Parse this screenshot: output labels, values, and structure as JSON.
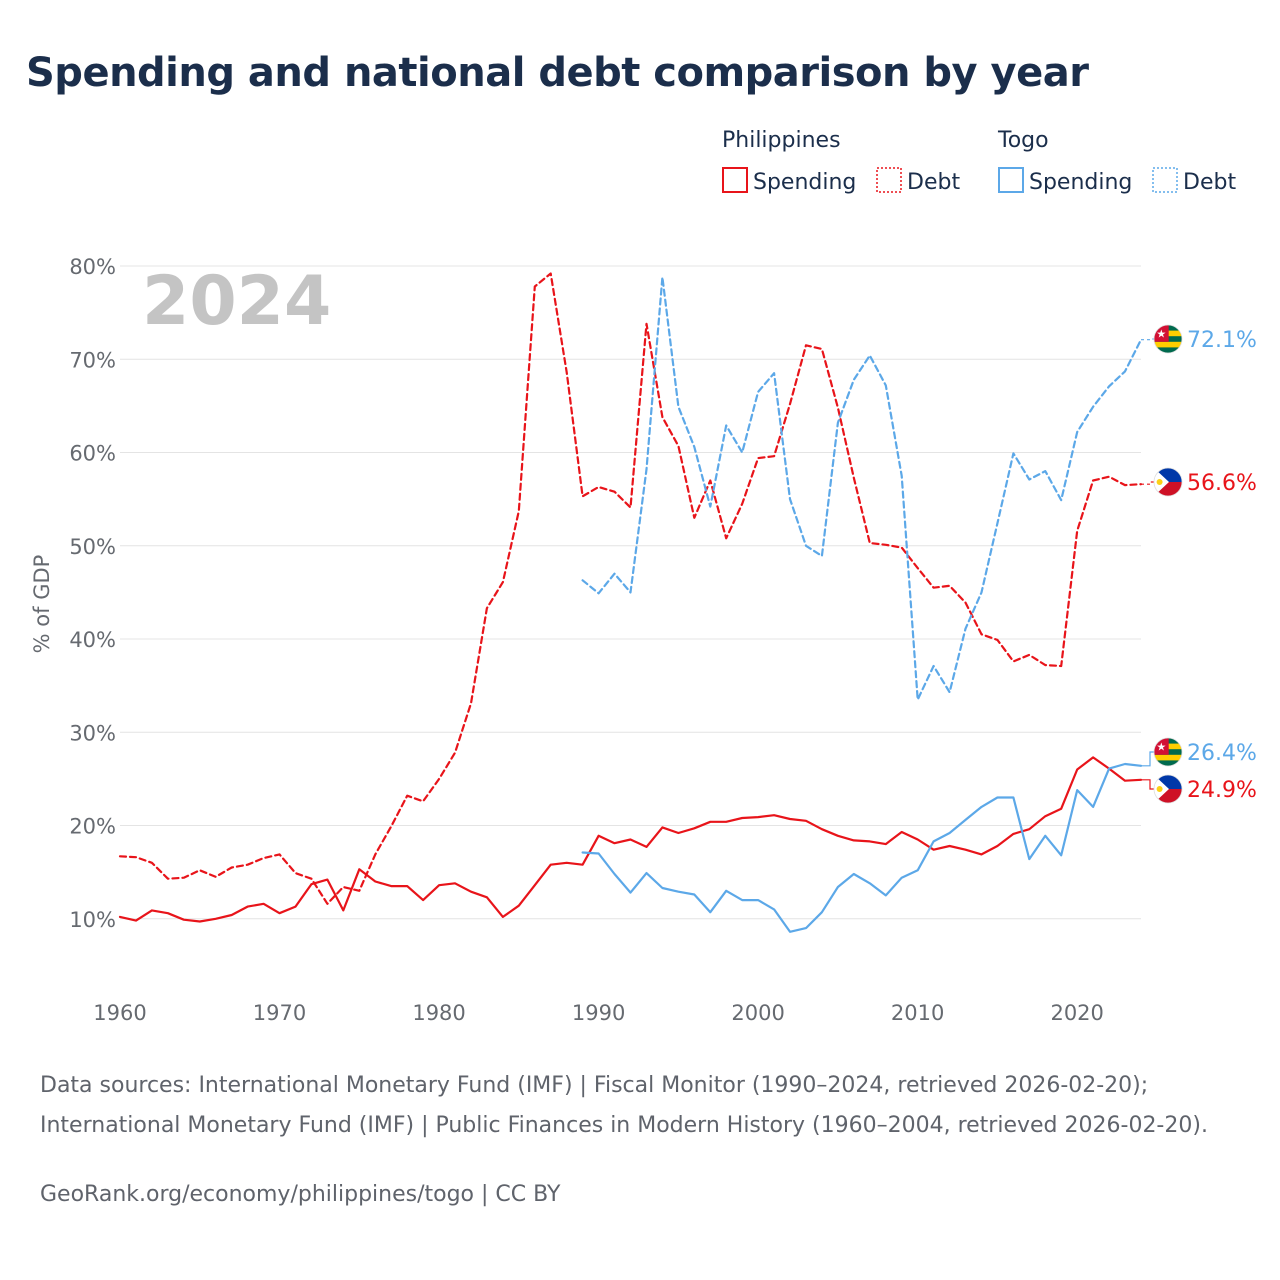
{
  "title": "Spending and national debt comparison by year",
  "year_stamp": "2024",
  "source_note": "Data sources: International Monetary Fund (IMF) | Fiscal Monitor (1990–2024, retrieved 2026-02-20); International Monetary Fund (IMF) | Public Finances in Modern History (1960–2004, retrieved 2026-02-20).",
  "credit": "GeoRank.org/economy/philippines/togo | CC BY",
  "legend": {
    "groups": [
      {
        "country": "Philippines",
        "color": "#e8141a",
        "items": [
          "Spending",
          "Debt"
        ]
      },
      {
        "country": "Togo",
        "color": "#5ca8e8",
        "items": [
          "Spending",
          "Debt"
        ]
      }
    ]
  },
  "chart_data": {
    "type": "line",
    "title": "Spending and national debt comparison by year",
    "ylabel": "% of GDP",
    "xlabel": "",
    "xlim": [
      1960,
      2024
    ],
    "ylim": [
      0,
      80
    ],
    "x_ticks": [
      1960,
      1970,
      1980,
      1990,
      2000,
      2010,
      2020
    ],
    "y_ticks": [
      10,
      20,
      30,
      40,
      50,
      60,
      70,
      80
    ],
    "y_tick_labels": [
      "10%",
      "20%",
      "30%",
      "40%",
      "50%",
      "60%",
      "70%",
      "80%"
    ],
    "series": [
      {
        "name": "Philippines Spending",
        "country": "Philippines",
        "metric": "Spending",
        "color": "#e8141a",
        "dash": "solid",
        "end_label": "24.9%",
        "start_year": 1960,
        "values": [
          10.2,
          9.8,
          10.9,
          10.6,
          9.9,
          9.7,
          10.0,
          10.4,
          11.3,
          11.6,
          10.6,
          11.3,
          13.7,
          14.2,
          10.9,
          15.3,
          14.0,
          13.5,
          13.5,
          12.0,
          13.6,
          13.8,
          12.9,
          12.3,
          10.2,
          11.4,
          13.6,
          15.8,
          16.0,
          15.8,
          18.9,
          18.1,
          18.5,
          17.7,
          19.8,
          19.2,
          19.7,
          20.4,
          20.4,
          20.8,
          20.9,
          21.1,
          20.7,
          20.5,
          19.6,
          18.9,
          18.4,
          18.3,
          18.0,
          19.3,
          18.5,
          17.4,
          17.8,
          17.4,
          16.9,
          17.8,
          19.1,
          19.6,
          21.0,
          21.8,
          26.0,
          27.3,
          26.1,
          24.8,
          24.9
        ]
      },
      {
        "name": "Philippines Debt",
        "country": "Philippines",
        "metric": "Debt",
        "color": "#e8141a",
        "dash": "dashed",
        "end_label": "56.6%",
        "start_year": 1960,
        "values": [
          16.7,
          16.6,
          16.0,
          14.3,
          14.4,
          15.2,
          14.5,
          15.5,
          15.8,
          16.5,
          16.9,
          14.9,
          14.3,
          11.6,
          13.4,
          13.0,
          16.9,
          19.9,
          23.2,
          22.6,
          25.0,
          27.8,
          33.1,
          43.3,
          46.1,
          53.7,
          77.8,
          79.2,
          68.6,
          55.3,
          56.3,
          55.8,
          54.1,
          73.8,
          63.8,
          60.7,
          53.0,
          57.0,
          50.8,
          54.5,
          59.4,
          59.6,
          65.2,
          71.5,
          71.1,
          64.8,
          57.3,
          50.3,
          50.1,
          49.8,
          47.6,
          45.5,
          45.7,
          43.9,
          40.5,
          39.9,
          37.6,
          38.3,
          37.2,
          37.1,
          51.6,
          57.0,
          57.4,
          56.5,
          56.6
        ]
      },
      {
        "name": "Togo Spending",
        "country": "Togo",
        "metric": "Spending",
        "color": "#5ca8e8",
        "dash": "solid",
        "end_label": "26.4%",
        "start_year": 1989,
        "values": [
          17.1,
          17.0,
          14.8,
          12.8,
          14.9,
          13.3,
          12.9,
          12.6,
          10.7,
          13.0,
          12.0,
          12.0,
          11.0,
          8.6,
          9.0,
          10.7,
          13.4,
          14.8,
          13.8,
          12.5,
          14.4,
          15.2,
          18.3,
          19.2,
          20.6,
          22.0,
          23.0,
          23.0,
          16.4,
          18.9,
          16.8,
          23.8,
          22.0,
          26.1,
          26.6,
          26.4
        ]
      },
      {
        "name": "Togo Debt",
        "country": "Togo",
        "metric": "Debt",
        "color": "#5ca8e8",
        "dash": "dashed",
        "end_label": "72.1%",
        "start_year": 1989,
        "values": [
          46.3,
          44.9,
          47.0,
          45.0,
          58.2,
          78.8,
          64.9,
          60.6,
          54.2,
          62.9,
          60.0,
          66.5,
          68.5,
          55.0,
          50.0,
          48.9,
          63.2,
          67.8,
          70.4,
          67.2,
          57.5,
          33.5,
          37.1,
          34.3,
          41.1,
          45.0,
          52.4,
          59.9,
          57.1,
          58.0,
          54.9,
          62.2,
          64.9,
          67.1,
          68.7,
          72.1
        ]
      }
    ],
    "flags": [
      "Togo",
      "Philippines"
    ]
  }
}
